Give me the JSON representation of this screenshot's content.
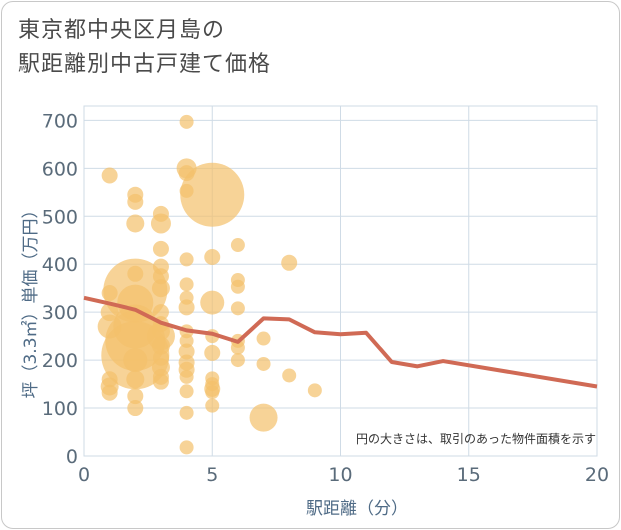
{
  "title_line1": "東京都中央区月島の",
  "title_line2": "駅距離別中古戸建て価格",
  "colors": {
    "bubble": "#f3c16b",
    "line": "#d06a55",
    "grid": "#cfdbe6",
    "axis_text": "#5a6b7a"
  },
  "chart_data": {
    "type": "scatter",
    "title": "東京都中央区月島の駅距離別中古戸建て価格",
    "xlabel": "駅距離（分）",
    "ylabel": "坪（3.3㎡）単価（万円）",
    "xlim": [
      0,
      20
    ],
    "ylim": [
      0,
      730
    ],
    "xticks": [
      0,
      5,
      10,
      15,
      20
    ],
    "yticks": [
      0,
      100,
      200,
      300,
      400,
      500,
      600,
      700
    ],
    "note": "円の大きさは、取引のあった物件面積を示す",
    "scatter": [
      {
        "x": 1,
        "y": 585,
        "s": 8
      },
      {
        "x": 1,
        "y": 340,
        "s": 8
      },
      {
        "x": 1,
        "y": 300,
        "s": 9
      },
      {
        "x": 1,
        "y": 270,
        "s": 12
      },
      {
        "x": 1,
        "y": 160,
        "s": 8
      },
      {
        "x": 1,
        "y": 145,
        "s": 9
      },
      {
        "x": 1,
        "y": 132,
        "s": 8
      },
      {
        "x": 2,
        "y": 545,
        "s": 8
      },
      {
        "x": 2,
        "y": 530,
        "s": 8
      },
      {
        "x": 2,
        "y": 485,
        "s": 9
      },
      {
        "x": 2,
        "y": 380,
        "s": 8
      },
      {
        "x": 2,
        "y": 345,
        "s": 32
      },
      {
        "x": 2,
        "y": 320,
        "s": 18
      },
      {
        "x": 2,
        "y": 270,
        "s": 22
      },
      {
        "x": 2,
        "y": 240,
        "s": 30
      },
      {
        "x": 2,
        "y": 210,
        "s": 34
      },
      {
        "x": 2,
        "y": 200,
        "s": 12
      },
      {
        "x": 2,
        "y": 160,
        "s": 9
      },
      {
        "x": 2,
        "y": 125,
        "s": 8
      },
      {
        "x": 2,
        "y": 100,
        "s": 8
      },
      {
        "x": 3,
        "y": 505,
        "s": 8
      },
      {
        "x": 3,
        "y": 485,
        "s": 10
      },
      {
        "x": 3,
        "y": 432,
        "s": 8
      },
      {
        "x": 3,
        "y": 395,
        "s": 8
      },
      {
        "x": 3,
        "y": 375,
        "s": 8
      },
      {
        "x": 3,
        "y": 350,
        "s": 9
      },
      {
        "x": 3,
        "y": 300,
        "s": 8
      },
      {
        "x": 3,
        "y": 275,
        "s": 8
      },
      {
        "x": 3,
        "y": 260,
        "s": 9
      },
      {
        "x": 3,
        "y": 250,
        "s": 14
      },
      {
        "x": 3,
        "y": 230,
        "s": 9
      },
      {
        "x": 3,
        "y": 205,
        "s": 8
      },
      {
        "x": 3,
        "y": 185,
        "s": 9
      },
      {
        "x": 3,
        "y": 165,
        "s": 8
      },
      {
        "x": 3,
        "y": 155,
        "s": 8
      },
      {
        "x": 4,
        "y": 697,
        "s": 7
      },
      {
        "x": 4,
        "y": 600,
        "s": 10
      },
      {
        "x": 4,
        "y": 590,
        "s": 8
      },
      {
        "x": 4,
        "y": 553,
        "s": 7
      },
      {
        "x": 4,
        "y": 410,
        "s": 7
      },
      {
        "x": 4,
        "y": 358,
        "s": 7
      },
      {
        "x": 4,
        "y": 330,
        "s": 7
      },
      {
        "x": 4,
        "y": 310,
        "s": 8
      },
      {
        "x": 4,
        "y": 260,
        "s": 7
      },
      {
        "x": 4,
        "y": 240,
        "s": 7
      },
      {
        "x": 4,
        "y": 218,
        "s": 8
      },
      {
        "x": 4,
        "y": 195,
        "s": 8
      },
      {
        "x": 4,
        "y": 180,
        "s": 8
      },
      {
        "x": 4,
        "y": 165,
        "s": 7
      },
      {
        "x": 4,
        "y": 135,
        "s": 7
      },
      {
        "x": 4,
        "y": 90,
        "s": 7
      },
      {
        "x": 4,
        "y": 18,
        "s": 7
      },
      {
        "x": 5,
        "y": 545,
        "s": 32
      },
      {
        "x": 5,
        "y": 415,
        "s": 8
      },
      {
        "x": 5,
        "y": 320,
        "s": 12
      },
      {
        "x": 5,
        "y": 250,
        "s": 7
      },
      {
        "x": 5,
        "y": 215,
        "s": 8
      },
      {
        "x": 5,
        "y": 162,
        "s": 7
      },
      {
        "x": 5,
        "y": 150,
        "s": 7
      },
      {
        "x": 5,
        "y": 140,
        "s": 8
      },
      {
        "x": 5,
        "y": 133,
        "s": 7
      },
      {
        "x": 5,
        "y": 105,
        "s": 7
      },
      {
        "x": 6,
        "y": 440,
        "s": 7
      },
      {
        "x": 6,
        "y": 367,
        "s": 7
      },
      {
        "x": 6,
        "y": 353,
        "s": 7
      },
      {
        "x": 6,
        "y": 308,
        "s": 7
      },
      {
        "x": 6,
        "y": 240,
        "s": 7
      },
      {
        "x": 6,
        "y": 226,
        "s": 7
      },
      {
        "x": 6,
        "y": 200,
        "s": 7
      },
      {
        "x": 7,
        "y": 245,
        "s": 7
      },
      {
        "x": 7,
        "y": 192,
        "s": 7
      },
      {
        "x": 7,
        "y": 80,
        "s": 14
      },
      {
        "x": 8,
        "y": 403,
        "s": 8
      },
      {
        "x": 8,
        "y": 168,
        "s": 7
      },
      {
        "x": 9,
        "y": 137,
        "s": 7
      }
    ],
    "series": [
      {
        "name": "average",
        "x": [
          0,
          1,
          2,
          3,
          4,
          5,
          6,
          7,
          8,
          9,
          10,
          11,
          12,
          13,
          14,
          20
        ],
        "values": [
          330,
          318,
          305,
          278,
          262,
          255,
          238,
          287,
          285,
          258,
          254,
          257,
          196,
          187,
          198,
          145
        ]
      }
    ]
  }
}
